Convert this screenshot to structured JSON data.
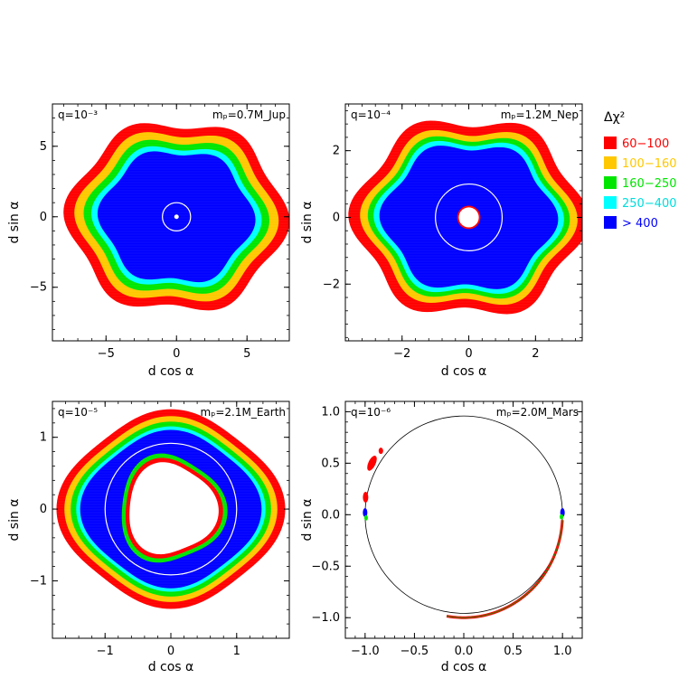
{
  "legend": {
    "title": "Δχ²",
    "entries": [
      {
        "label": "60−100",
        "color": "#ff0000"
      },
      {
        "label": "100−160",
        "color": "#ffc800"
      },
      {
        "label": "160−250",
        "color": "#00e600"
      },
      {
        "label": "250−400",
        "color": "#00ffff"
      },
      {
        "label": "> 400",
        "color": "#0000ff"
      }
    ]
  },
  "chart_data": [
    {
      "type": "heatmap",
      "q_label": "q=10⁻³",
      "mass_label": "mₚ=0.7M_Jup",
      "xlabel": "d cos α",
      "ylabel": "d sin α",
      "xlim": [
        -8.8,
        8.0
      ],
      "ylim": [
        -8.8,
        8.0
      ],
      "xticks": [
        -5,
        0,
        5
      ],
      "yticks": [
        -5,
        0,
        5
      ],
      "tick_labels_x": [
        "−5",
        "0",
        "5"
      ],
      "tick_labels_y": [
        "−5",
        "0",
        "5"
      ],
      "einstein_ring_radius": 1.0,
      "contours": [
        {
          "level": "60−100",
          "radius": 7.3
        },
        {
          "level": "100−160",
          "radius": 6.6
        },
        {
          "level": "160−250",
          "radius": 6.0
        },
        {
          "level": "250−400",
          "radius": 5.5
        },
        {
          "level": "> 400",
          "radius": 5.1
        }
      ]
    },
    {
      "type": "heatmap",
      "q_label": "q=10⁻⁴",
      "mass_label": "mₚ=1.2M_Nep",
      "xlabel": "d cos α",
      "ylabel": "d sin α",
      "xlim": [
        -3.7,
        3.4
      ],
      "ylim": [
        -3.7,
        3.4
      ],
      "xticks": [
        -2,
        0,
        2
      ],
      "yticks": [
        -2,
        0,
        2
      ],
      "tick_labels_x": [
        "−2",
        "0",
        "2"
      ],
      "tick_labels_y": [
        "−2",
        "0",
        "2"
      ],
      "einstein_ring_radius": 1.0,
      "inner_hole_radius": 0.3,
      "contours": [
        {
          "level": "60−100",
          "radius": 3.1
        },
        {
          "level": "100−160",
          "radius": 2.8
        },
        {
          "level": "160−250",
          "radius": 2.6
        },
        {
          "level": "250−400",
          "radius": 2.45
        },
        {
          "level": "> 400",
          "radius": 2.3
        }
      ]
    },
    {
      "type": "heatmap",
      "q_label": "q=10⁻⁵",
      "mass_label": "mₚ=2.1M_Earth",
      "xlabel": "d cos α",
      "ylabel": "d sin α",
      "xlim": [
        -1.8,
        1.8
      ],
      "ylim": [
        -1.8,
        1.5
      ],
      "xticks": [
        -1,
        0,
        1
      ],
      "yticks": [
        -1,
        0,
        1
      ],
      "tick_labels_x": [
        "−1",
        "0",
        "1"
      ],
      "tick_labels_y": [
        "−1",
        "0",
        "1"
      ],
      "einstein_ring_radius": 1.0,
      "inner_hole_radius": 0.65,
      "contours": [
        {
          "level": "60−100",
          "radius": 1.45
        },
        {
          "level": "100−160",
          "radius": 1.35
        },
        {
          "level": "160−250",
          "radius": 1.27
        },
        {
          "level": "250−400",
          "radius": 1.2
        },
        {
          "level": "> 400",
          "radius": 1.15
        }
      ]
    },
    {
      "type": "scatter",
      "q_label": "q=10⁻⁶",
      "mass_label": "mₚ=2.0M_Mars",
      "xlabel": "d cos α",
      "ylabel": "d sin α",
      "xlim": [
        -1.2,
        1.2
      ],
      "ylim": [
        -1.2,
        1.1
      ],
      "xticks": [
        -1.0,
        -0.5,
        0.0,
        0.5,
        1.0
      ],
      "yticks": [
        -1.0,
        -0.5,
        0.0,
        0.5,
        1.0
      ],
      "tick_labels_x": [
        "−1.0",
        "−0.5",
        "0.0",
        "0.5",
        "1.0"
      ],
      "tick_labels_y": [
        "−1.0",
        "−0.5",
        "0.0",
        "0.5",
        "1.0"
      ],
      "einstein_ring_radius": 1.0
    }
  ]
}
